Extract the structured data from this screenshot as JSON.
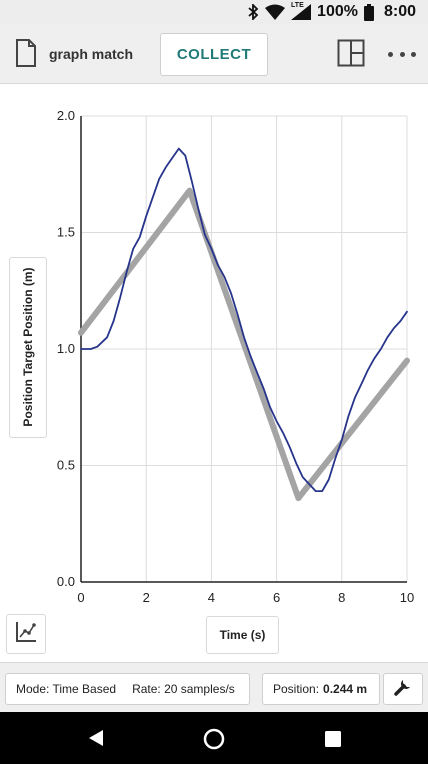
{
  "status_bar": {
    "network": "LTE",
    "battery_percent": "100%",
    "time": "8:00",
    "icons": [
      "bluetooth-icon",
      "wifi-icon",
      "signal-icon",
      "battery-icon"
    ]
  },
  "toolbar": {
    "title": "graph match",
    "collect_label": "COLLECT",
    "icons": [
      "document-icon",
      "layout-icon",
      "more-icon"
    ]
  },
  "graph": {
    "y_axis_label": "Position Target Position (m)",
    "x_axis_label": "Time (s)"
  },
  "chart_data": {
    "type": "line",
    "xlabel": "Time (s)",
    "ylabel": "Position Target Position (m)",
    "xlim": [
      0,
      10
    ],
    "ylim": [
      0,
      2.0
    ],
    "x_ticks": [
      "0",
      "2",
      "4",
      "6",
      "8",
      "10"
    ],
    "y_ticks": [
      "0.0",
      "0.5",
      "1.0",
      "1.5",
      "2.0"
    ],
    "grid": true,
    "colors": {
      "position": "#27348b",
      "target": "#a4a4a4"
    },
    "series": [
      {
        "key": "target",
        "x": [
          0,
          3.33,
          6.67,
          10
        ],
        "y": [
          1.07,
          1.68,
          0.36,
          0.95
        ]
      },
      {
        "key": "position",
        "x": [
          0,
          0.3,
          0.5,
          0.8,
          1.0,
          1.2,
          1.4,
          1.6,
          1.8,
          2.0,
          2.2,
          2.4,
          2.6,
          2.8,
          3.0,
          3.2,
          3.4,
          3.6,
          3.8,
          4.0,
          4.2,
          4.4,
          4.6,
          4.8,
          5.0,
          5.2,
          5.4,
          5.6,
          5.8,
          6.0,
          6.2,
          6.4,
          6.6,
          6.8,
          7.0,
          7.2,
          7.4,
          7.6,
          7.8,
          8.0,
          8.2,
          8.4,
          8.6,
          8.8,
          9.0,
          9.2,
          9.4,
          9.6,
          9.8,
          10.0
        ],
        "y": [
          1.0,
          1.0,
          1.01,
          1.05,
          1.12,
          1.22,
          1.33,
          1.43,
          1.48,
          1.57,
          1.65,
          1.73,
          1.78,
          1.82,
          1.86,
          1.83,
          1.72,
          1.6,
          1.49,
          1.43,
          1.36,
          1.31,
          1.24,
          1.15,
          1.05,
          0.97,
          0.9,
          0.83,
          0.75,
          0.69,
          0.64,
          0.58,
          0.51,
          0.45,
          0.42,
          0.39,
          0.39,
          0.44,
          0.53,
          0.61,
          0.71,
          0.79,
          0.85,
          0.91,
          0.96,
          1.0,
          1.05,
          1.09,
          1.12,
          1.16
        ]
      }
    ]
  },
  "bottom_bar": {
    "mode": "Mode: Time Based",
    "rate": "Rate: 20 samples/s",
    "position_label": "Position:",
    "position_value": "0.244 m"
  }
}
